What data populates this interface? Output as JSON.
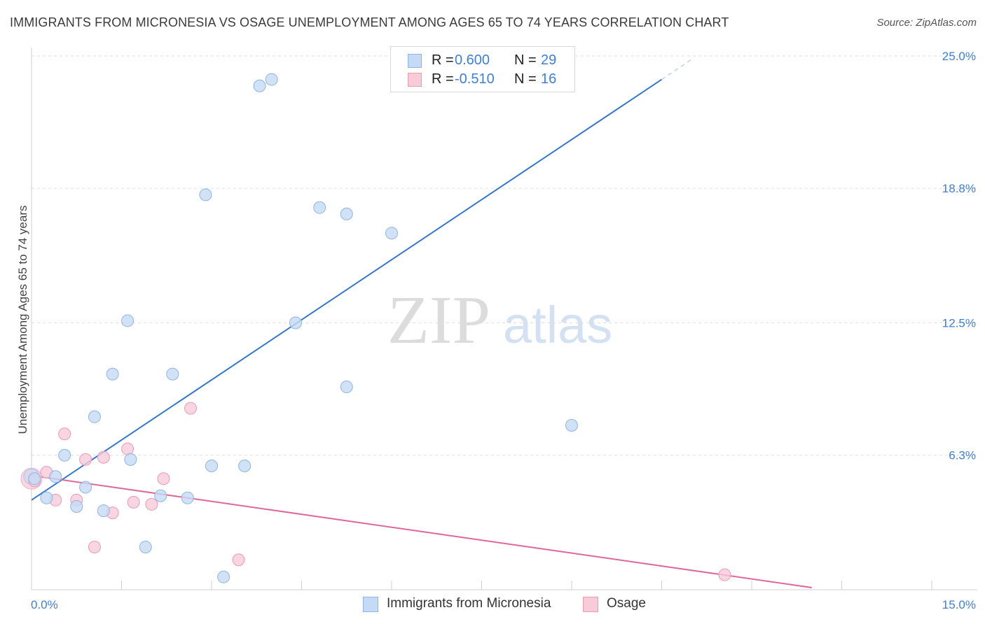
{
  "header": {
    "title": "IMMIGRANTS FROM MICRONESIA VS OSAGE UNEMPLOYMENT AMONG AGES 65 TO 74 YEARS CORRELATION CHART",
    "source": "Source: ZipAtlas.com"
  },
  "legend": {
    "rows": [
      {
        "r_label": "R =",
        "r_value": "0.600",
        "n_label": "N =",
        "n_value": "29"
      },
      {
        "r_label": "R =",
        "r_value": "-0.510",
        "n_label": "N =",
        "n_value": "16"
      }
    ]
  },
  "bottom_legend": {
    "items": [
      {
        "label": "Immigrants from Micronesia"
      },
      {
        "label": "Osage"
      }
    ]
  },
  "watermark": {
    "zip": "ZIP",
    "atlas": "atlas"
  },
  "colors": {
    "blue_fill": "#c5dbf5",
    "blue_stroke": "#8fb4e6",
    "blue_line": "#3577cc",
    "pink_fill": "#f8cbd9",
    "pink_stroke": "#e99bb4",
    "pink_line": "#e0679a",
    "tick_label": "#3f7fd6",
    "grid": "#dedede"
  },
  "chart_data": {
    "type": "scatter",
    "title": "IMMIGRANTS FROM MICRONESIA VS OSAGE UNEMPLOYMENT AMONG AGES 65 TO 74 YEARS CORRELATION CHART",
    "xlabel": "",
    "ylabel": "Unemployment Among Ages 65 to 74 years",
    "xlim": [
      0,
      15
    ],
    "ylim": [
      0,
      25
    ],
    "x_tick_labels": [
      {
        "value": 0,
        "label": "0.0%"
      },
      {
        "value": 15,
        "label": "15.0%"
      }
    ],
    "x_minor_ticks": [
      1.5,
      3.0,
      4.5,
      6.0,
      7.5,
      9.0,
      10.5,
      12.0,
      13.5,
      15.0
    ],
    "y_ticks": [
      {
        "value": 6.3,
        "label": "6.3%"
      },
      {
        "value": 12.5,
        "label": "12.5%"
      },
      {
        "value": 18.8,
        "label": "18.8%"
      },
      {
        "value": 25.0,
        "label": "25.0%"
      }
    ],
    "grid": "horizontal dashed",
    "series": [
      {
        "name": "Immigrants from Micronesia",
        "color": "#3577cc",
        "points": [
          [
            0.05,
            5.2
          ],
          [
            0.25,
            4.3
          ],
          [
            0.4,
            5.3
          ],
          [
            0.55,
            6.3
          ],
          [
            0.75,
            3.9
          ],
          [
            0.9,
            4.8
          ],
          [
            1.05,
            8.1
          ],
          [
            1.2,
            3.7
          ],
          [
            1.35,
            10.1
          ],
          [
            1.6,
            12.6
          ],
          [
            1.65,
            6.1
          ],
          [
            1.9,
            2.0
          ],
          [
            2.15,
            4.4
          ],
          [
            2.35,
            10.1
          ],
          [
            2.6,
            4.3
          ],
          [
            2.9,
            18.5
          ],
          [
            3.0,
            5.8
          ],
          [
            3.2,
            0.6
          ],
          [
            3.55,
            5.8
          ],
          [
            3.8,
            23.6
          ],
          [
            4.0,
            23.9
          ],
          [
            4.4,
            12.5
          ],
          [
            4.8,
            17.9
          ],
          [
            5.25,
            9.5
          ],
          [
            5.25,
            17.6
          ],
          [
            6.0,
            16.7
          ],
          [
            7.0,
            24.9
          ],
          [
            7.15,
            24.9
          ],
          [
            9.0,
            7.7
          ]
        ],
        "trendline": {
          "x": [
            0.0,
            10.5
          ],
          "y": [
            4.2,
            23.9
          ],
          "dashed_extension_to_x": 11.0
        }
      },
      {
        "name": "Osage",
        "color": "#e0679a",
        "points": [
          [
            0.05,
            5.1
          ],
          [
            0.25,
            5.5
          ],
          [
            0.4,
            4.2
          ],
          [
            0.55,
            7.3
          ],
          [
            0.75,
            4.2
          ],
          [
            0.9,
            6.1
          ],
          [
            1.05,
            2.0
          ],
          [
            1.2,
            6.2
          ],
          [
            1.35,
            3.6
          ],
          [
            1.6,
            6.6
          ],
          [
            1.7,
            4.1
          ],
          [
            2.0,
            4.0
          ],
          [
            2.2,
            5.2
          ],
          [
            2.65,
            8.5
          ],
          [
            3.45,
            1.4
          ],
          [
            11.55,
            0.7
          ]
        ],
        "trendline": {
          "x": [
            0.0,
            13.0
          ],
          "y": [
            5.35,
            0.1
          ]
        }
      }
    ]
  }
}
